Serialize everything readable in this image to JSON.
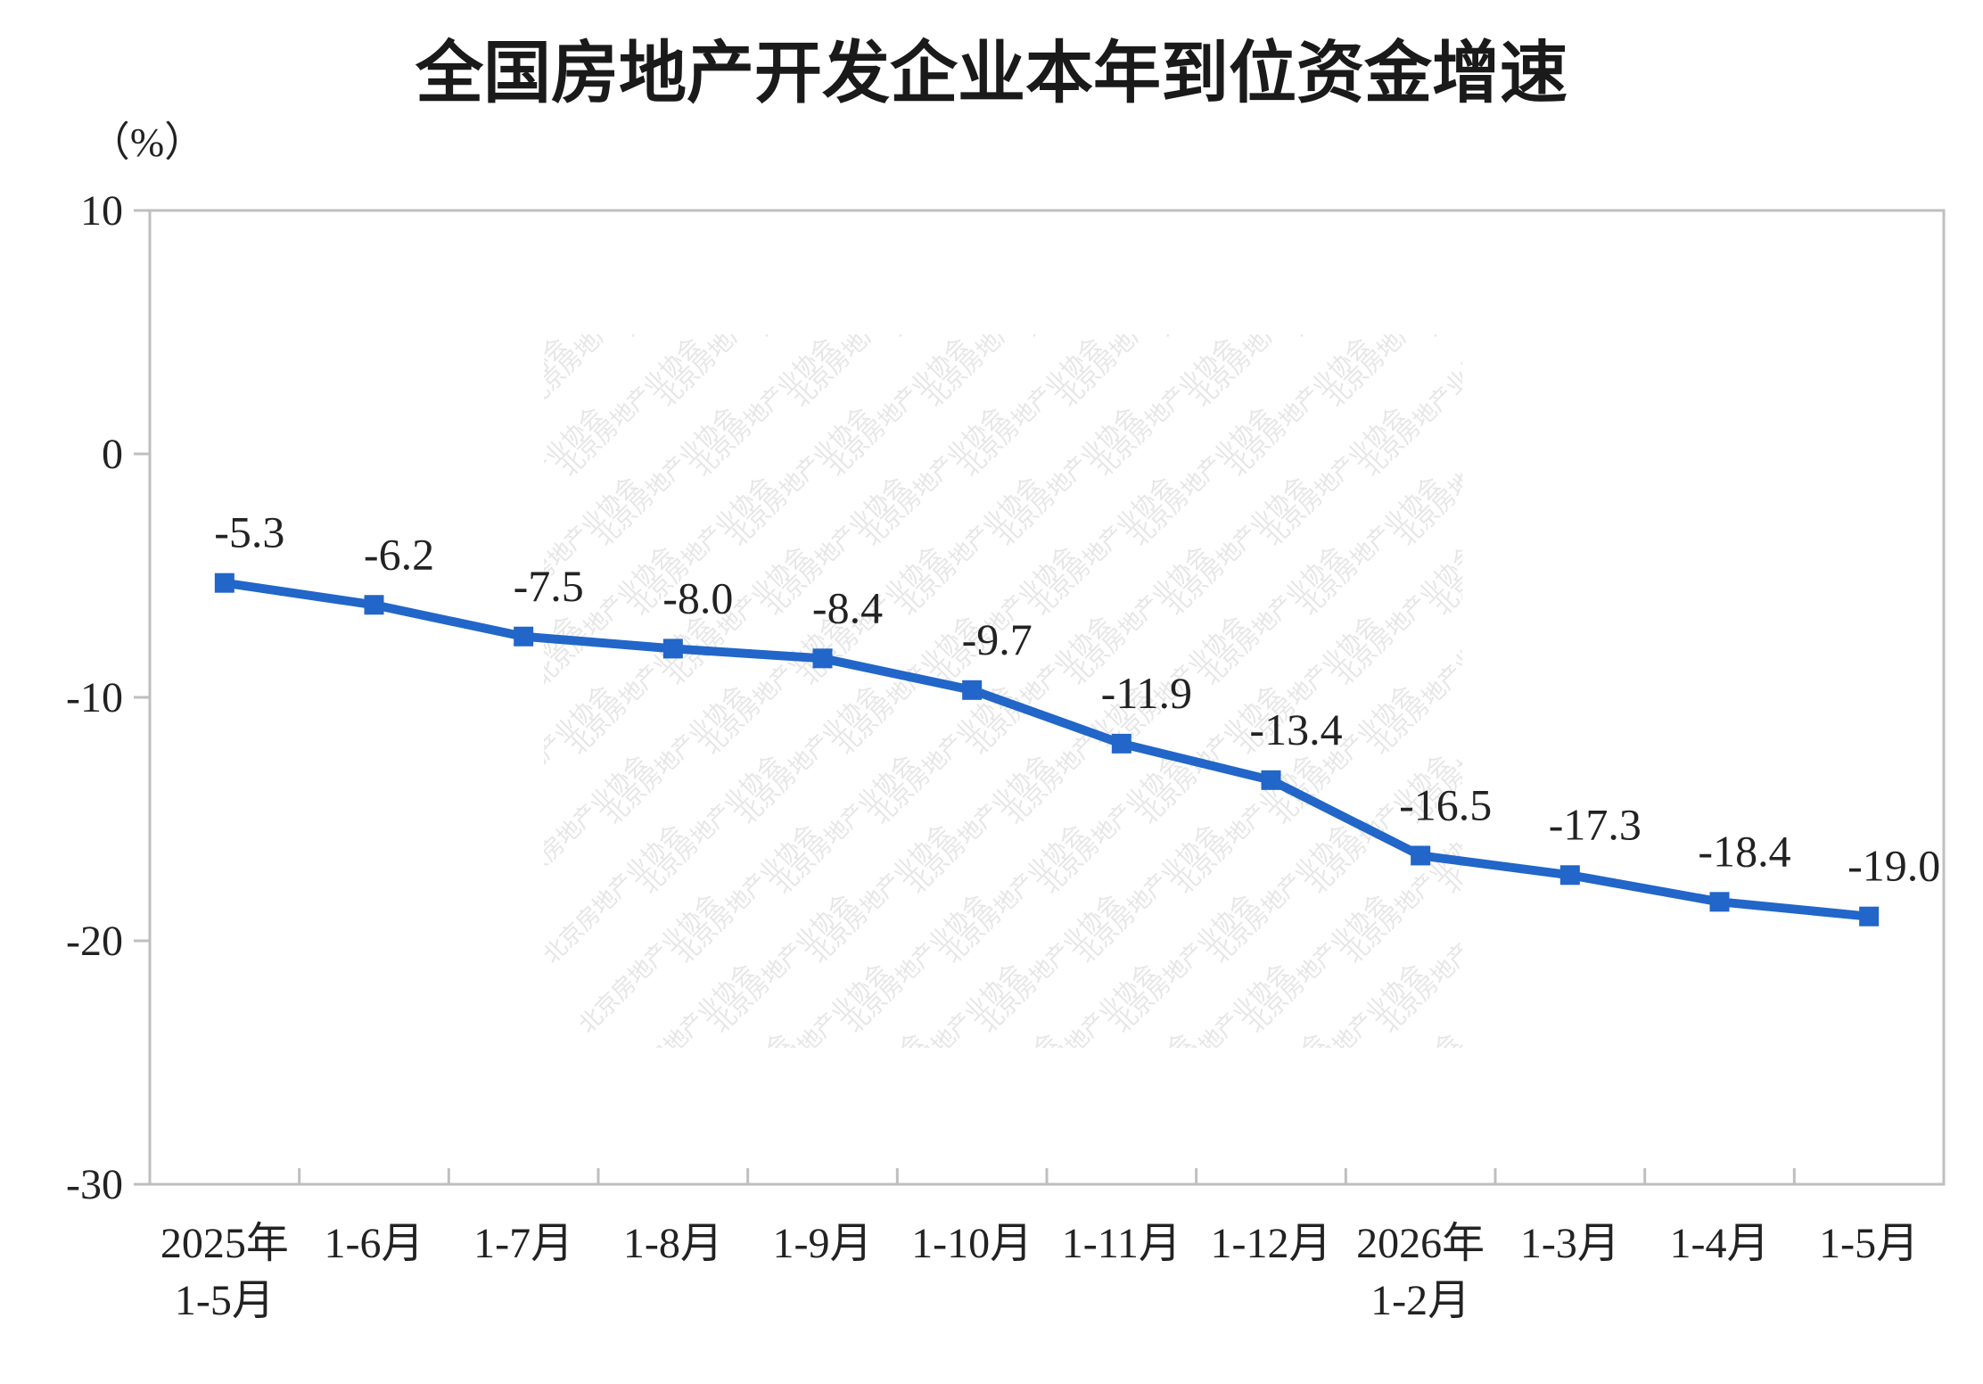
{
  "chart_data": {
    "type": "line",
    "title": "全国房地产开发企业本年到位资金增速",
    "ylabel": "（%）",
    "xlabel": "",
    "categories": [
      [
        "2025年",
        "1-5月"
      ],
      [
        "1-6月"
      ],
      [
        "1-7月"
      ],
      [
        "1-8月"
      ],
      [
        "1-9月"
      ],
      [
        "1-10月"
      ],
      [
        "1-11月"
      ],
      [
        "1-12月"
      ],
      [
        "2026年",
        "1-2月"
      ],
      [
        "1-3月"
      ],
      [
        "1-4月"
      ],
      [
        "1-5月"
      ]
    ],
    "series": [
      {
        "values": [
          -5.3,
          -6.2,
          -7.5,
          -8.0,
          -8.4,
          -9.7,
          -11.9,
          -13.4,
          -16.5,
          -17.3,
          -18.4,
          -19.0
        ],
        "labels": [
          "-5.3",
          "-6.2",
          "-7.5",
          "-8.0",
          "-8.4",
          "-9.7",
          "-11.9",
          "-13.4",
          "-16.5",
          "-17.3",
          "-18.4",
          "-19.0"
        ],
        "color": "#2166c8"
      }
    ],
    "ylim": [
      -30,
      10
    ],
    "yticks": [
      10,
      0,
      -10,
      -20,
      -30
    ],
    "grid": false,
    "legend": "none",
    "watermark": "北京房地产业协会"
  }
}
